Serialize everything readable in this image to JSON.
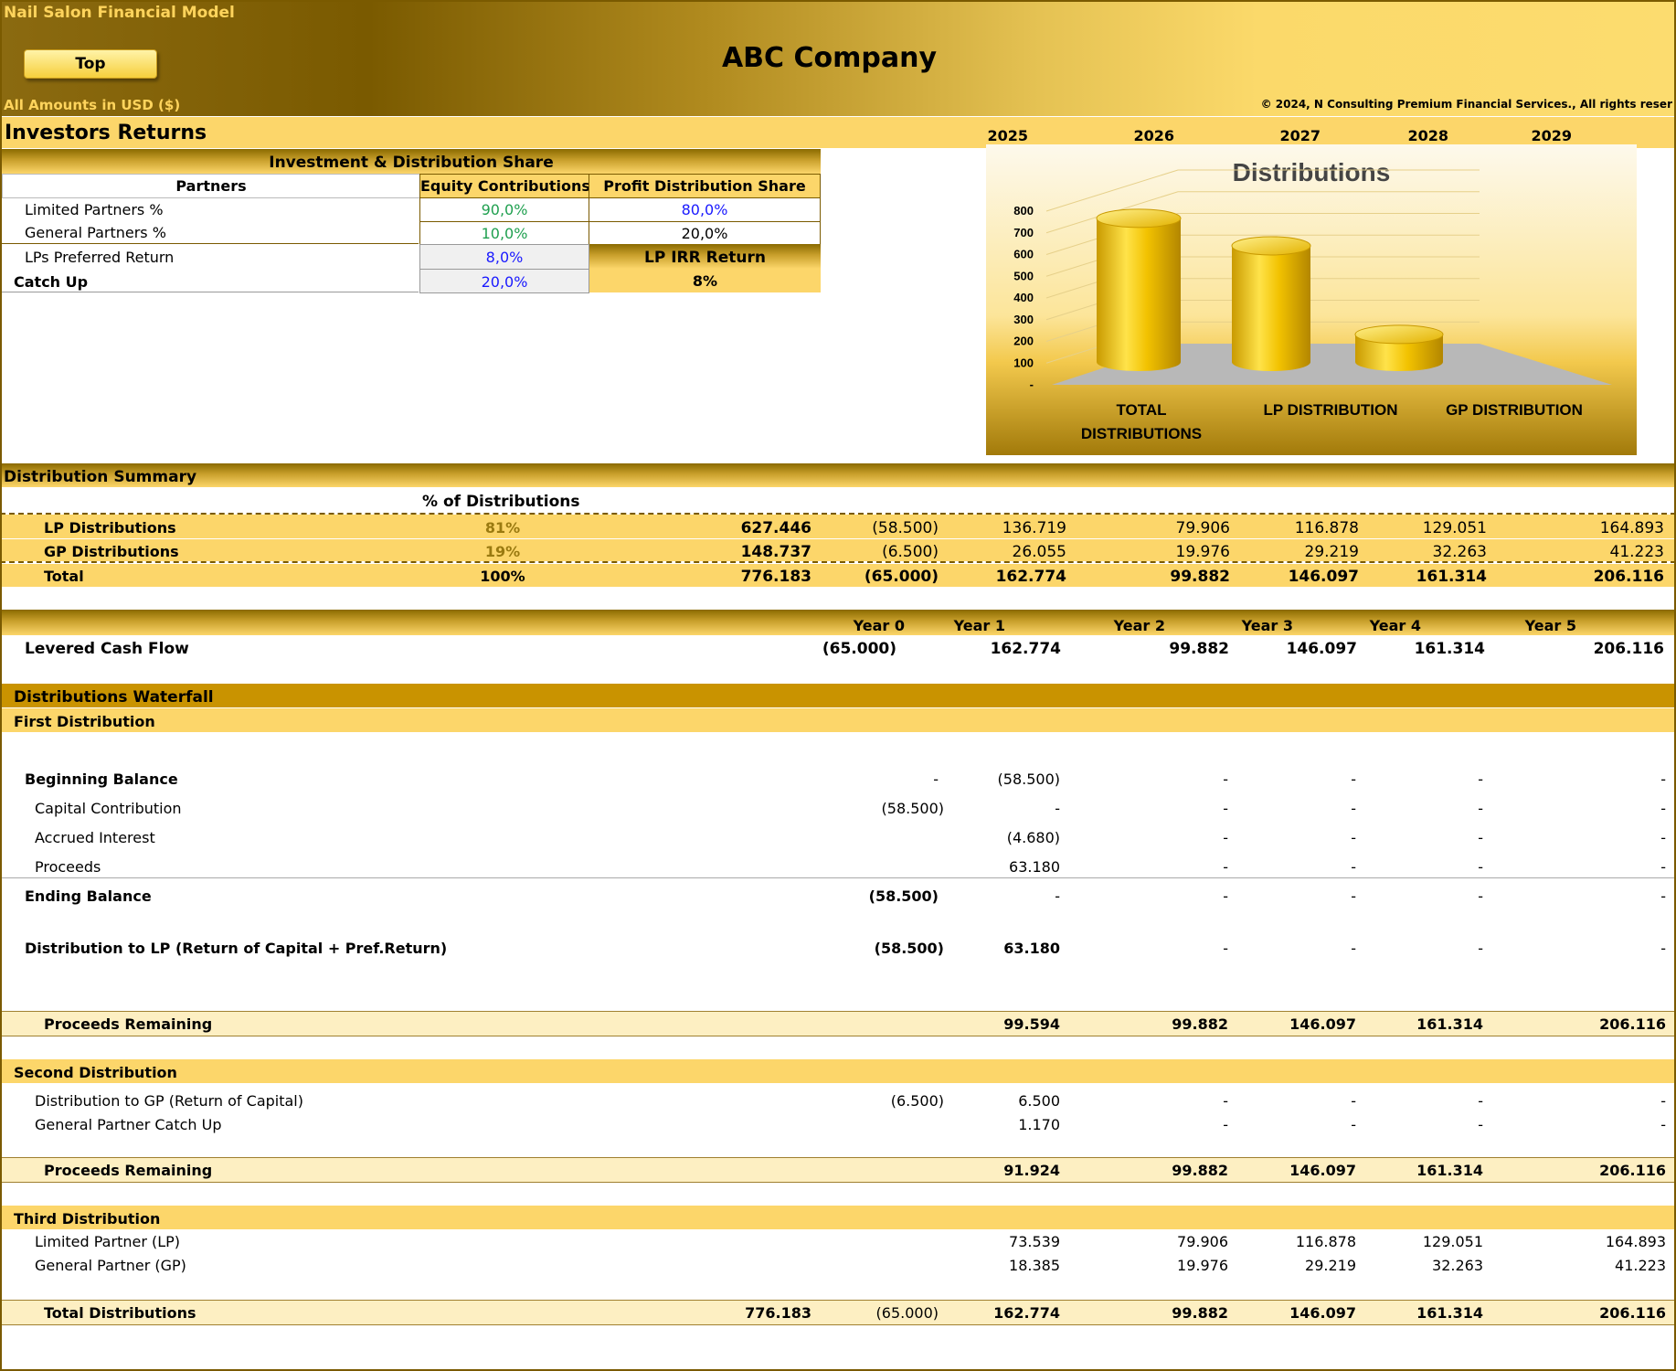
{
  "header": {
    "model_name": "Nail Salon Financial Model",
    "top_button": "Top",
    "company": "ABC Company",
    "amounts_note": "All Amounts in  USD ($)",
    "copyright": "© 2024, N Consulting Premium Financial Services., All rights reser"
  },
  "section_title": "Investors Returns",
  "years": [
    "2025",
    "2026",
    "2027",
    "2028",
    "2029"
  ],
  "investment": {
    "title": "Investment & Distribution Share",
    "col_partners": "Partners",
    "col_equity": "Equity Contributions",
    "col_profit": "Profit Distribution Share",
    "rows": [
      {
        "label": "Limited Partners %",
        "equity": "90,0%",
        "profit": "80,0%"
      },
      {
        "label": "General Partners %",
        "equity": "10,0%",
        "profit": "20,0%"
      }
    ],
    "pref_label": "LPs Preferred Return",
    "pref_value": "8,0%",
    "irr_label": "LP IRR Return",
    "irr_value": "8%",
    "catchup_label": "Catch Up",
    "catchup_value": "20,0%"
  },
  "chart_data": {
    "type": "bar",
    "title": "Distributions",
    "categories": [
      "TOTAL DISTRIBUTIONS",
      "LP DISTRIBUTION",
      "GP DISTRIBUTION"
    ],
    "values": [
      776.183,
      627.446,
      148.737
    ],
    "ylim": [
      0,
      800
    ],
    "yticks": [
      "-",
      "100",
      "200",
      "300",
      "400",
      "500",
      "600",
      "700",
      "800"
    ],
    "bar_color": "#f5c400",
    "style": "3d-cylinder"
  },
  "summary": {
    "title": "Distribution Summary",
    "pct_header": "% of Distributions",
    "rows": [
      {
        "label": "LP Distributions",
        "pct": "81%",
        "total": "627.446",
        "vals": [
          "(58.500)",
          "136.719",
          "79.906",
          "116.878",
          "129.051",
          "164.893"
        ]
      },
      {
        "label": "GP Distributions",
        "pct": "19%",
        "total": "148.737",
        "vals": [
          "(6.500)",
          "26.055",
          "19.976",
          "29.219",
          "32.263",
          "41.223"
        ]
      },
      {
        "label": "Total",
        "pct": "100%",
        "total": "776.183",
        "vals": [
          "(65.000)",
          "162.774",
          "99.882",
          "146.097",
          "161.314",
          "206.116"
        ]
      }
    ]
  },
  "cashflow": {
    "year_labels": [
      "Year 0",
      "Year 1",
      "Year 2",
      "Year 3",
      "Year 4",
      "Year 5"
    ],
    "label": "Levered Cash Flow",
    "vals": [
      "(65.000)",
      "162.774",
      "99.882",
      "146.097",
      "161.314",
      "206.116"
    ]
  },
  "waterfall": {
    "title": "Distributions Waterfall",
    "first": {
      "title": "First Distribution",
      "beginning": {
        "label": "Beginning Balance",
        "vals": [
          "-",
          "(58.500)",
          "-",
          "-",
          "-",
          "-"
        ]
      },
      "capital": {
        "label": "Capital Contribution",
        "vals": [
          "(58.500)",
          "-",
          "-",
          "-",
          "-",
          "-"
        ]
      },
      "accrued": {
        "label": "Accrued Interest",
        "vals": [
          "",
          "(4.680)",
          "-",
          "-",
          "-",
          "-"
        ]
      },
      "proceeds": {
        "label": "Proceeds",
        "vals": [
          "",
          "63.180",
          "-",
          "-",
          "-",
          "-"
        ]
      },
      "ending": {
        "label": "Ending Balance",
        "vals": [
          "(58.500)",
          "-",
          "-",
          "-",
          "-",
          "-"
        ]
      },
      "dist_lp": {
        "label": "Distribution to LP (Return of Capital + Pref.Return)",
        "vals": [
          "(58.500)",
          "63.180",
          "-",
          "-",
          "-",
          "-"
        ]
      },
      "remaining": {
        "label": "Proceeds Remaining",
        "vals": [
          "",
          "99.594",
          "99.882",
          "146.097",
          "161.314",
          "206.116"
        ]
      }
    },
    "second": {
      "title": "Second Distribution",
      "dist_gp": {
        "label": "Distribution to GP (Return of Capital)",
        "vals": [
          "(6.500)",
          "6.500",
          "-",
          "-",
          "-",
          "-"
        ]
      },
      "catchup": {
        "label": "General Partner Catch Up",
        "vals": [
          "",
          "1.170",
          "-",
          "-",
          "-",
          "-"
        ]
      },
      "remaining": {
        "label": "Proceeds Remaining",
        "vals": [
          "",
          "91.924",
          "99.882",
          "146.097",
          "161.314",
          "206.116"
        ]
      }
    },
    "third": {
      "title": "Third Distribution",
      "lp": {
        "label": "Limited Partner (LP)",
        "vals": [
          "",
          "73.539",
          "79.906",
          "116.878",
          "129.051",
          "164.893"
        ]
      },
      "gp": {
        "label": "General Partner (GP)",
        "vals": [
          "",
          "18.385",
          "19.976",
          "29.219",
          "32.263",
          "41.223"
        ]
      },
      "total": {
        "label": "Total Distributions",
        "total": "776.183",
        "vals": [
          "(65.000)",
          "162.774",
          "99.882",
          "146.097",
          "161.314",
          "206.116"
        ]
      }
    }
  }
}
